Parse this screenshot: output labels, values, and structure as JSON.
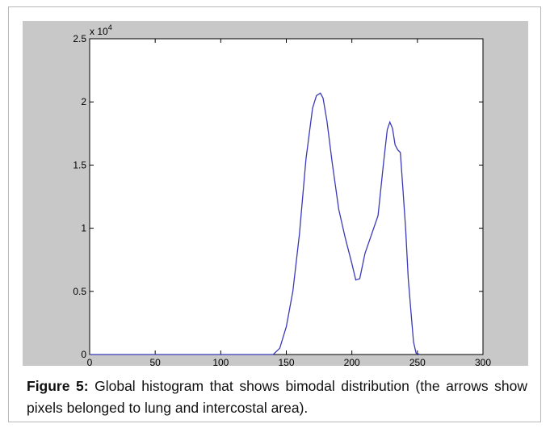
{
  "chart_data": {
    "type": "line",
    "title": "",
    "xlabel": "",
    "ylabel": "",
    "xlim": [
      0,
      300
    ],
    "ylim": [
      0,
      2.5
    ],
    "y_exponent_label": "x 10",
    "y_exponent_power": "4",
    "xticks": [
      0,
      50,
      100,
      150,
      200,
      250,
      300
    ],
    "xtick_labels": [
      "0",
      "50",
      "100",
      "150",
      "200",
      "250",
      "300"
    ],
    "yticks": [
      0,
      0.5,
      1,
      1.5,
      2,
      2.5
    ],
    "ytick_labels": [
      "0",
      "0.5",
      "1",
      "1.5",
      "2",
      "2.5"
    ],
    "grid": false,
    "line_color": "#3a3ab8",
    "series": [
      {
        "x": [
          0,
          140,
          145,
          150,
          155,
          160,
          165,
          170,
          173,
          176,
          178,
          181,
          185,
          190,
          195,
          200,
          203,
          206,
          210,
          215,
          220,
          224,
          227,
          229,
          231,
          233,
          235,
          237,
          239,
          241,
          243,
          245,
          247,
          249,
          252
        ],
        "y": [
          0,
          0,
          0.05,
          0.22,
          0.5,
          0.95,
          1.55,
          1.95,
          2.05,
          2.07,
          2.03,
          1.85,
          1.52,
          1.15,
          0.92,
          0.72,
          0.59,
          0.6,
          0.8,
          0.95,
          1.1,
          1.5,
          1.78,
          1.84,
          1.79,
          1.66,
          1.62,
          1.6,
          1.3,
          1.0,
          0.6,
          0.35,
          0.1,
          0.01,
          0
        ]
      }
    ]
  },
  "caption": {
    "label": "Figure 5:",
    "text": " Global histogram that shows bimodal distribution (the arrows show pixels belonged to lung and intercostal area)."
  }
}
